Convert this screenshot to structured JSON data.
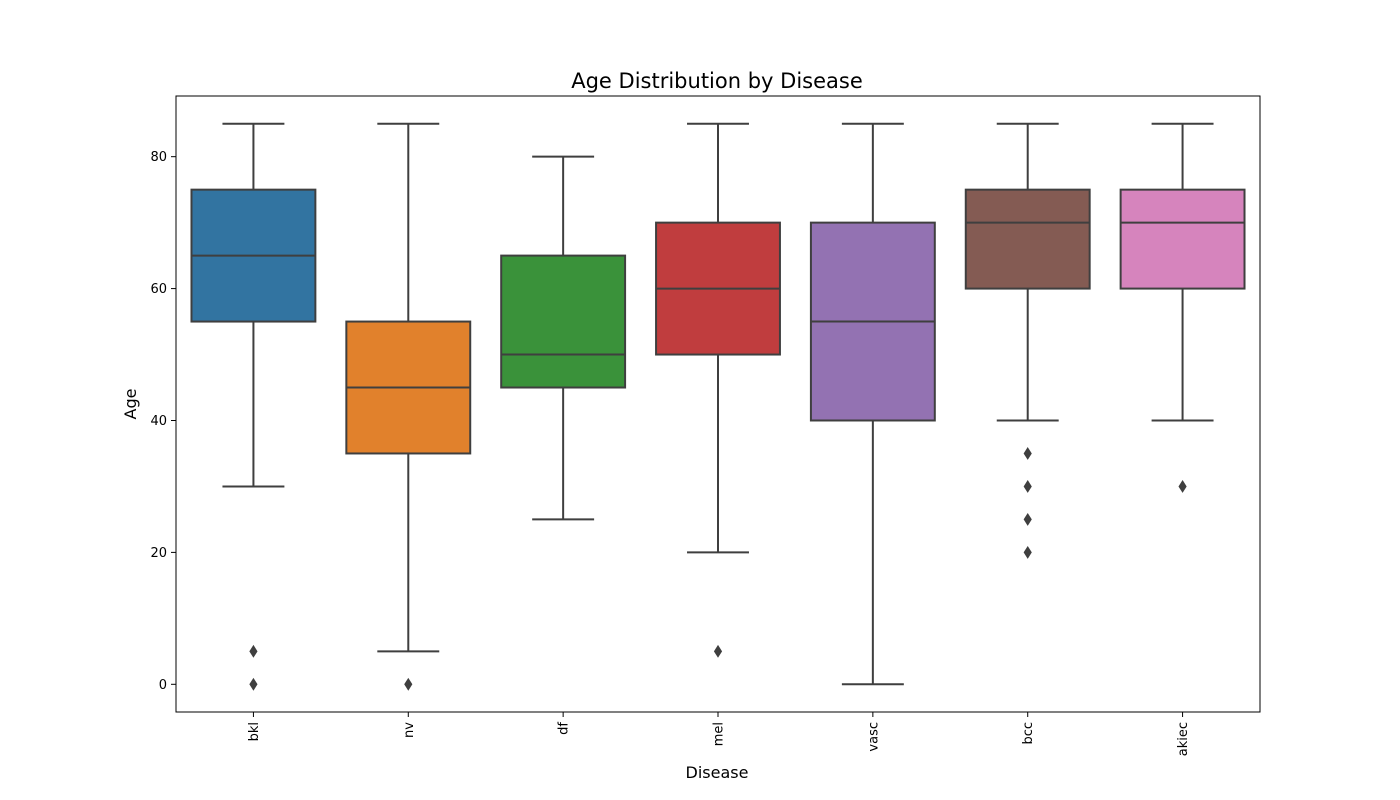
{
  "chart_data": {
    "type": "box",
    "title": "Age Distribution by Disease",
    "xlabel": "Disease",
    "ylabel": "Age",
    "ylim": [
      -4.2,
      89.2
    ],
    "yticks": [
      0,
      20,
      40,
      60,
      80
    ],
    "grid": false,
    "categories": [
      "bkl",
      "nv",
      "df",
      "mel",
      "vasc",
      "bcc",
      "akiec"
    ],
    "boxes": [
      {
        "name": "bkl",
        "color": "#3274a1",
        "whisker_low": 30,
        "q1": 55,
        "median": 65,
        "q3": 75,
        "whisker_high": 85,
        "outliers": [
          0,
          5
        ]
      },
      {
        "name": "nv",
        "color": "#e1812c",
        "whisker_low": 5,
        "q1": 35,
        "median": 45,
        "q3": 55,
        "whisker_high": 85,
        "outliers": [
          0
        ]
      },
      {
        "name": "df",
        "color": "#3a923a",
        "whisker_low": 25,
        "q1": 45,
        "median": 50,
        "q3": 65,
        "whisker_high": 80,
        "outliers": []
      },
      {
        "name": "mel",
        "color": "#c03d3e",
        "whisker_low": 20,
        "q1": 50,
        "median": 60,
        "q3": 70,
        "whisker_high": 85,
        "outliers": [
          5
        ]
      },
      {
        "name": "vasc",
        "color": "#9372b2",
        "whisker_low": 0,
        "q1": 40,
        "median": 55,
        "q3": 70,
        "whisker_high": 85,
        "outliers": []
      },
      {
        "name": "bcc",
        "color": "#845b53",
        "whisker_low": 40,
        "q1": 60,
        "median": 70,
        "q3": 75,
        "whisker_high": 85,
        "outliers": [
          20,
          25,
          30,
          35
        ]
      },
      {
        "name": "akiec",
        "color": "#d684bd",
        "whisker_low": 40,
        "q1": 60,
        "median": 70,
        "q3": 75,
        "whisker_high": 85,
        "outliers": [
          30
        ]
      }
    ],
    "line_color": "#3f3f3f"
  }
}
